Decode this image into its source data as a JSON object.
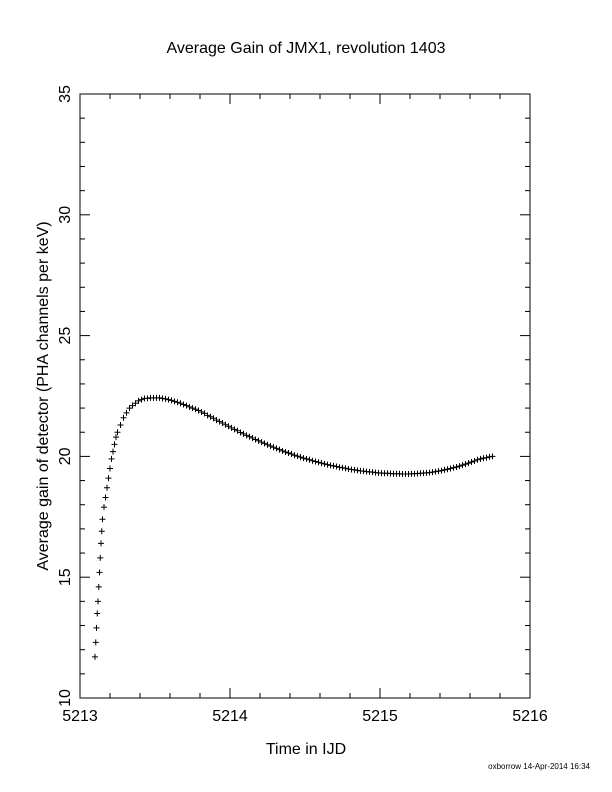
{
  "chart_data": {
    "type": "scatter",
    "title": "Average Gain of JMX1, revolution 1403",
    "xlabel": "Time in IJD",
    "ylabel": "Average gain of detector (PHA channels per keV)",
    "xlim": [
      5213,
      5216
    ],
    "ylim": [
      10,
      35
    ],
    "xticks": [
      "5213",
      "5214",
      "5215",
      "5216"
    ],
    "yticks": [
      "10",
      "15",
      "20",
      "25",
      "30",
      "35"
    ],
    "marker": "plus",
    "grid": false,
    "series": [
      {
        "points": [
          [
            5213.1,
            11.7
          ],
          [
            5213.105,
            12.3
          ],
          [
            5213.11,
            12.9
          ],
          [
            5213.115,
            13.5
          ],
          [
            5213.12,
            14.0
          ],
          [
            5213.125,
            14.6
          ],
          [
            5213.13,
            15.2
          ],
          [
            5213.135,
            15.8
          ],
          [
            5213.14,
            16.4
          ],
          [
            5213.145,
            16.9
          ],
          [
            5213.15,
            17.4
          ],
          [
            5213.16,
            17.9
          ],
          [
            5213.17,
            18.3
          ],
          [
            5213.18,
            18.7
          ],
          [
            5213.19,
            19.1
          ],
          [
            5213.2,
            19.5
          ],
          [
            5213.21,
            19.9
          ],
          [
            5213.22,
            20.2
          ],
          [
            5213.23,
            20.5
          ],
          [
            5213.24,
            20.8
          ],
          [
            5213.25,
            21.0
          ],
          [
            5213.27,
            21.3
          ],
          [
            5213.29,
            21.6
          ],
          [
            5213.31,
            21.8
          ],
          [
            5213.33,
            22.0
          ],
          [
            5213.35,
            22.1
          ],
          [
            5213.37,
            22.2
          ],
          [
            5213.39,
            22.3
          ],
          [
            5213.41,
            22.35
          ],
          [
            5213.43,
            22.4
          ],
          [
            5213.45,
            22.4
          ],
          [
            5213.47,
            22.42
          ],
          [
            5213.49,
            22.42
          ],
          [
            5213.51,
            22.42
          ],
          [
            5213.53,
            22.42
          ],
          [
            5213.55,
            22.4
          ],
          [
            5213.57,
            22.38
          ],
          [
            5213.59,
            22.35
          ],
          [
            5213.61,
            22.32
          ],
          [
            5213.63,
            22.28
          ],
          [
            5213.65,
            22.24
          ],
          [
            5213.67,
            22.2
          ],
          [
            5213.69,
            22.15
          ],
          [
            5213.71,
            22.1
          ],
          [
            5213.73,
            22.05
          ],
          [
            5213.75,
            22.0
          ],
          [
            5213.77,
            21.95
          ],
          [
            5213.79,
            21.9
          ],
          [
            5213.81,
            21.84
          ],
          [
            5213.83,
            21.78
          ],
          [
            5213.85,
            21.7
          ],
          [
            5213.87,
            21.64
          ],
          [
            5213.89,
            21.58
          ],
          [
            5213.91,
            21.5
          ],
          [
            5213.93,
            21.44
          ],
          [
            5213.95,
            21.38
          ],
          [
            5213.97,
            21.31
          ],
          [
            5213.99,
            21.25
          ],
          [
            5214.01,
            21.18
          ],
          [
            5214.03,
            21.12
          ],
          [
            5214.05,
            21.06
          ],
          [
            5214.07,
            20.99
          ],
          [
            5214.09,
            20.93
          ],
          [
            5214.11,
            20.87
          ],
          [
            5214.13,
            20.82
          ],
          [
            5214.15,
            20.76
          ],
          [
            5214.17,
            20.7
          ],
          [
            5214.19,
            20.65
          ],
          [
            5214.21,
            20.59
          ],
          [
            5214.23,
            20.54
          ],
          [
            5214.25,
            20.48
          ],
          [
            5214.27,
            20.43
          ],
          [
            5214.29,
            20.38
          ],
          [
            5214.31,
            20.33
          ],
          [
            5214.33,
            20.28
          ],
          [
            5214.35,
            20.23
          ],
          [
            5214.37,
            20.18
          ],
          [
            5214.39,
            20.14
          ],
          [
            5214.41,
            20.1
          ],
          [
            5214.43,
            20.05
          ],
          [
            5214.45,
            20.01
          ],
          [
            5214.47,
            19.97
          ],
          [
            5214.49,
            19.93
          ],
          [
            5214.51,
            19.9
          ],
          [
            5214.53,
            19.86
          ],
          [
            5214.55,
            19.82
          ],
          [
            5214.57,
            19.79
          ],
          [
            5214.59,
            19.76
          ],
          [
            5214.61,
            19.72
          ],
          [
            5214.63,
            19.69
          ],
          [
            5214.65,
            19.66
          ],
          [
            5214.67,
            19.63
          ],
          [
            5214.69,
            19.61
          ],
          [
            5214.71,
            19.58
          ],
          [
            5214.73,
            19.55
          ],
          [
            5214.75,
            19.53
          ],
          [
            5214.77,
            19.51
          ],
          [
            5214.79,
            19.48
          ],
          [
            5214.81,
            19.46
          ],
          [
            5214.83,
            19.44
          ],
          [
            5214.85,
            19.42
          ],
          [
            5214.87,
            19.4
          ],
          [
            5214.89,
            19.39
          ],
          [
            5214.91,
            19.37
          ],
          [
            5214.93,
            19.36
          ],
          [
            5214.95,
            19.35
          ],
          [
            5214.97,
            19.33
          ],
          [
            5214.99,
            19.32
          ],
          [
            5215.01,
            19.31
          ],
          [
            5215.03,
            19.3
          ],
          [
            5215.05,
            19.3
          ],
          [
            5215.07,
            19.29
          ],
          [
            5215.09,
            19.28
          ],
          [
            5215.11,
            19.28
          ],
          [
            5215.13,
            19.28
          ],
          [
            5215.15,
            19.27
          ],
          [
            5215.17,
            19.27
          ],
          [
            5215.19,
            19.27
          ],
          [
            5215.21,
            19.28
          ],
          [
            5215.23,
            19.28
          ],
          [
            5215.25,
            19.29
          ],
          [
            5215.27,
            19.3
          ],
          [
            5215.29,
            19.31
          ],
          [
            5215.31,
            19.32
          ],
          [
            5215.33,
            19.33
          ],
          [
            5215.35,
            19.35
          ],
          [
            5215.37,
            19.37
          ],
          [
            5215.39,
            19.39
          ],
          [
            5215.41,
            19.41
          ],
          [
            5215.43,
            19.44
          ],
          [
            5215.45,
            19.47
          ],
          [
            5215.47,
            19.5
          ],
          [
            5215.49,
            19.53
          ],
          [
            5215.51,
            19.56
          ],
          [
            5215.53,
            19.6
          ],
          [
            5215.55,
            19.64
          ],
          [
            5215.57,
            19.68
          ],
          [
            5215.59,
            19.72
          ],
          [
            5215.61,
            19.77
          ],
          [
            5215.63,
            19.81
          ],
          [
            5215.65,
            19.86
          ],
          [
            5215.67,
            19.9
          ],
          [
            5215.69,
            19.93
          ],
          [
            5215.71,
            19.95
          ],
          [
            5215.73,
            19.98
          ],
          [
            5215.75,
            20.0
          ]
        ]
      }
    ]
  },
  "credit": "oxborrow 14-Apr-2014 16:34"
}
